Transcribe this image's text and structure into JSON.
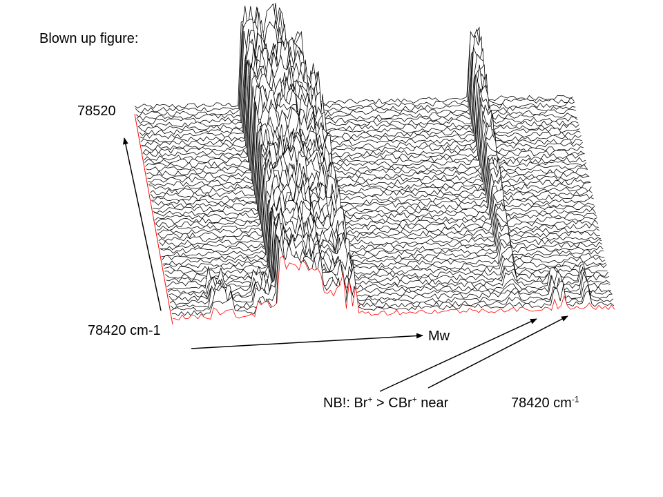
{
  "title": "Blown up figure:",
  "axis_labels": {
    "y_top": "78520",
    "y_bottom": "78420 cm-1",
    "x": "Mw"
  },
  "note": {
    "prefix": "NB!: Br",
    "sup1": "+",
    "middle": " > CBr",
    "sup2": "+",
    "suffix": " near",
    "wave_value": "78420 cm",
    "wave_exp": "-1"
  },
  "colors": {
    "trace": "#000000",
    "front_trace": "#ff0000",
    "arrow": "#000000"
  },
  "chart_data": {
    "type": "area",
    "style": "3d-waterfall",
    "x_axis_label": "Mw",
    "y_axis_labels": [
      "78420 cm-1",
      "78520"
    ],
    "y_range": [
      78420,
      78520
    ],
    "highlighted_front_trace_color": "red",
    "peaks": [
      {
        "x_frac": 0.24,
        "description": "tall broad peak cluster, left"
      },
      {
        "x_frac": 0.34,
        "description": "tall narrow peak"
      },
      {
        "x_frac": 0.76,
        "description": "narrow isolated peak, right"
      },
      {
        "x_frac": 0.88,
        "description": "small peaks at front near 78420 cm-1"
      }
    ]
  }
}
